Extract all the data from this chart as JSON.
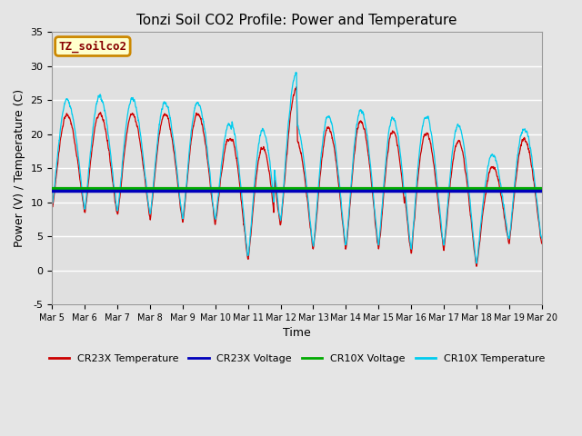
{
  "title": "Tonzi Soil CO2 Profile: Power and Temperature",
  "xlabel": "Time",
  "ylabel": "Power (V) / Temperature (C)",
  "ylim": [
    -5,
    35
  ],
  "xlim": [
    0,
    15
  ],
  "xtick_labels": [
    "Mar 5",
    "Mar 6",
    "Mar 7",
    "Mar 8",
    "Mar 9",
    "Mar 10",
    "Mar 11",
    "Mar 12",
    "Mar 13",
    "Mar 14",
    "Mar 15",
    "Mar 16",
    "Mar 17",
    "Mar 18",
    "Mar 19",
    "Mar 20"
  ],
  "background_color": "#e5e5e5",
  "plot_bg_color": "#e0e0e0",
  "cr23x_voltage_value": 11.7,
  "cr10x_voltage_value": 12.0,
  "cr23x_temp_color": "#cc0000",
  "cr23x_voltage_color": "#0000bb",
  "cr10x_voltage_color": "#00aa00",
  "cr10x_temp_color": "#00ccee",
  "label_text": "TZ_soilco2",
  "label_bg": "#ffffcc",
  "label_border": "#cc8800",
  "legend_labels": [
    "CR23X Temperature",
    "CR23X Voltage",
    "CR10X Voltage",
    "CR10X Temperature"
  ],
  "title_fontsize": 11,
  "axis_fontsize": 9
}
